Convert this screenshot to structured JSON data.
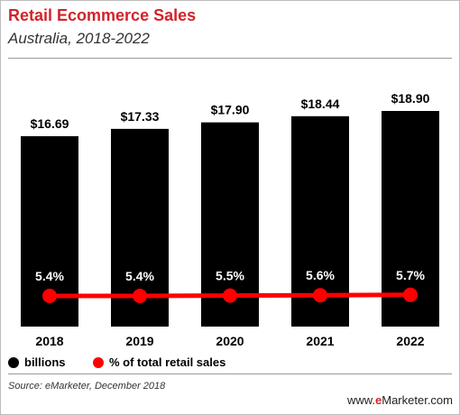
{
  "header": {
    "title": "Retail Ecommerce Sales",
    "subtitle": "Australia, 2018-2022"
  },
  "legend": {
    "bars_label": "billions",
    "line_label": "% of total retail sales"
  },
  "footer": {
    "source": "Source: eMarketer, December 2018",
    "brand_prefix": "www.",
    "brand_highlight": "e",
    "brand_rest": "Marketer.com"
  },
  "colors": {
    "title": "#d2232a",
    "bars": "#000000",
    "line": "#ff0000",
    "bar_label": "#000000",
    "pct_label": "#ffffff"
  },
  "chart_data": {
    "type": "bar",
    "categories": [
      "2018",
      "2019",
      "2020",
      "2021",
      "2022"
    ],
    "series": [
      {
        "name": "billions",
        "type": "bar",
        "values": [
          16.69,
          17.33,
          17.9,
          18.44,
          18.9
        ],
        "labels": [
          "$16.69",
          "$17.33",
          "$17.90",
          "$18.44",
          "$18.90"
        ]
      },
      {
        "name": "% of total retail sales",
        "type": "line",
        "values": [
          5.4,
          5.4,
          5.5,
          5.6,
          5.7
        ],
        "labels": [
          "5.4%",
          "5.4%",
          "5.5%",
          "5.6%",
          "5.7%"
        ]
      }
    ],
    "grid": false,
    "legend_position": "bottom"
  }
}
